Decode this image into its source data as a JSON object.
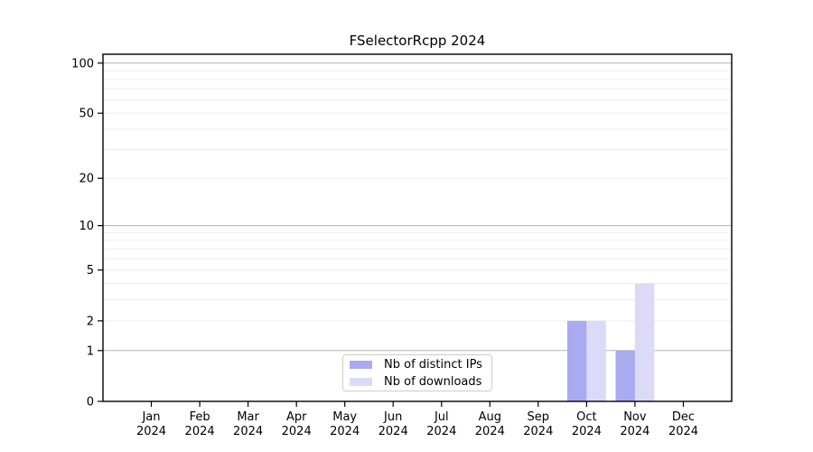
{
  "chart_data": {
    "type": "bar",
    "title": "FSelectorRcpp 2024",
    "categories": [
      "Jan 2024",
      "Feb 2024",
      "Mar 2024",
      "Apr 2024",
      "May 2024",
      "Jun 2024",
      "Jul 2024",
      "Aug 2024",
      "Sep 2024",
      "Oct 2024",
      "Nov 2024",
      "Dec 2024"
    ],
    "series": [
      {
        "name": "Nb of distinct IPs",
        "color": "#aaaaf0",
        "values": [
          0,
          0,
          0,
          0,
          0,
          0,
          0,
          0,
          0,
          2,
          1,
          0
        ]
      },
      {
        "name": "Nb of downloads",
        "color": "#dbdbf8",
        "values": [
          0,
          0,
          0,
          0,
          0,
          0,
          0,
          0,
          0,
          2,
          4,
          0
        ]
      }
    ],
    "xlabel": "",
    "ylabel": "",
    "yscale": "log1p",
    "ylim": [
      0,
      113
    ],
    "y_ticks": [
      0,
      1,
      2,
      5,
      10,
      20,
      50,
      100
    ],
    "y_minor_gridlines": [
      3,
      4,
      6,
      7,
      8,
      9,
      30,
      40,
      60,
      70,
      80,
      90
    ],
    "grid": "horizontal",
    "legend_position": "bottom-center",
    "colors": {
      "decade_gridline": "#b3b3b3",
      "minor_gridline": "#ededed",
      "axis": "#000000",
      "background": "#ffffff"
    }
  }
}
